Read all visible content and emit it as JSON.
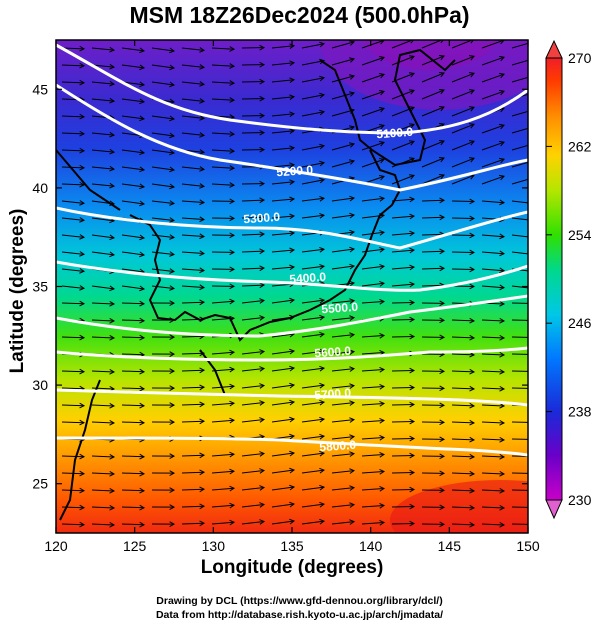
{
  "title": "MSM 18Z26Dec2024 (500.0hPa)",
  "axes": {
    "xlabel": "Longitude (degrees)",
    "ylabel": "Latitude  (degrees)",
    "xticks": [
      "120",
      "125",
      "130",
      "135",
      "140",
      "145",
      "150"
    ],
    "yticks": [
      "25",
      "30",
      "35",
      "40",
      "45"
    ],
    "xlim": [
      120,
      150
    ],
    "ylim": [
      22.5,
      47.5
    ]
  },
  "colorbar": {
    "labels": [
      "270",
      "262",
      "254",
      "246",
      "238",
      "230"
    ],
    "range": [
      230,
      270
    ],
    "colors": [
      "#c800c8",
      "#6a00c8",
      "#1a2ad8",
      "#0078ff",
      "#00c8e6",
      "#00d88c",
      "#30e000",
      "#b4e600",
      "#ffd200",
      "#ff8c00",
      "#ff3a00",
      "#f01e28"
    ]
  },
  "contours": [
    {
      "label": "5100.0"
    },
    {
      "label": "5200.0"
    },
    {
      "label": "5300.0"
    },
    {
      "label": "5400.0"
    },
    {
      "label": "5500.0"
    },
    {
      "label": "5600.0"
    },
    {
      "label": "5700.0"
    },
    {
      "label": "5800.0"
    }
  ],
  "credits": {
    "line1": "Drawing by DCL (https://www.gfd-dennou.org/library/dcl/)",
    "line2": "Data from http://database.rish.kyoto-u.ac.jp/arch/jmadata/"
  }
}
